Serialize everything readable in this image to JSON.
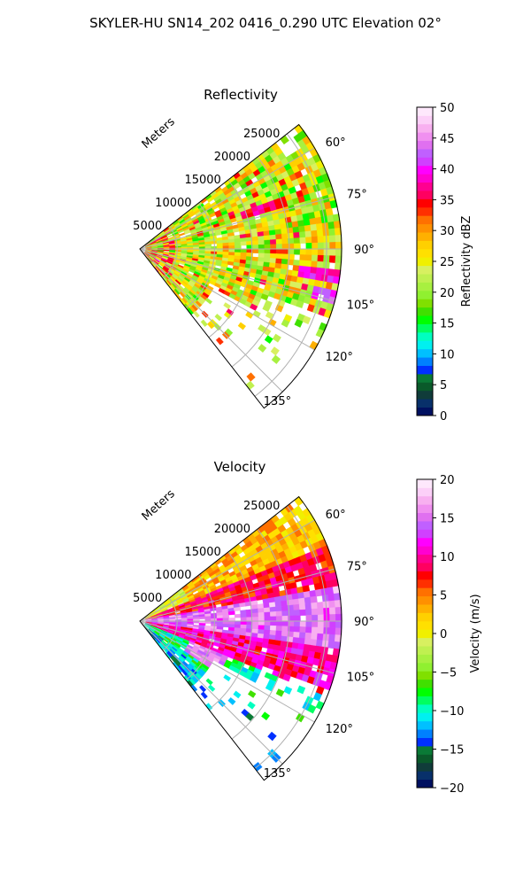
{
  "suptitle": "SKYLER-HU  SN14_202  0416_0.290 UTC Elevation 02°",
  "chart_data": [
    {
      "type": "heatmap",
      "title": "Reflectivity",
      "radial_axis_label": "Meters",
      "radial_ticks": [
        5000,
        10000,
        15000,
        20000,
        25000
      ],
      "radial_tick_labels": [
        "5000",
        "10000",
        "15000",
        "20000",
        "25000"
      ],
      "max_range": 27000,
      "azimuth_range": [
        52,
        142
      ],
      "azimuth_ticks": [
        60,
        75,
        90,
        105,
        120,
        135
      ],
      "azimuth_tick_labels": [
        "60°",
        "75°",
        "90°",
        "105°",
        "120°",
        "135°"
      ],
      "grid": true,
      "colorbar": {
        "label": "Reflectivity dBZ",
        "range": [
          0,
          50
        ],
        "ticks": [
          0,
          5,
          10,
          15,
          20,
          25,
          30,
          35,
          40,
          45,
          50
        ],
        "tick_labels": [
          "0",
          "5",
          "10",
          "15",
          "20",
          "25",
          "30",
          "35",
          "40",
          "45",
          "50"
        ],
        "colors": [
          "#001060",
          "#08306a",
          "#103c3a",
          "#0a5a2a",
          "#0a7a36",
          "#0030ff",
          "#0080ff",
          "#00c0ff",
          "#00f0f0",
          "#00ffc0",
          "#00ff60",
          "#00ff00",
          "#40e000",
          "#80e000",
          "#90f030",
          "#a8f040",
          "#c0f050",
          "#d8f060",
          "#f0f000",
          "#ffe000",
          "#ffd000",
          "#ffb000",
          "#ff9000",
          "#ff7000",
          "#ff3000",
          "#ff0000",
          "#ff0060",
          "#ff0090",
          "#ff00d0",
          "#ff00ff",
          "#d040ff",
          "#c060ff",
          "#e070f0",
          "#f090f0",
          "#f8b0f0",
          "#fcd0f8",
          "#fee8fc"
        ]
      },
      "dominant_range_dbz": [
        20,
        30
      ],
      "high_echo_azimuths": [
        72,
        98,
        104
      ],
      "annotations": []
    },
    {
      "type": "heatmap",
      "title": "Velocity",
      "radial_axis_label": "Meters",
      "radial_ticks": [
        5000,
        10000,
        15000,
        20000,
        25000
      ],
      "radial_tick_labels": [
        "5000",
        "10000",
        "15000",
        "20000",
        "25000"
      ],
      "max_range": 27000,
      "azimuth_range": [
        52,
        142
      ],
      "azimuth_ticks": [
        60,
        75,
        90,
        105,
        120,
        135
      ],
      "azimuth_tick_labels": [
        "60°",
        "75°",
        "90°",
        "105°",
        "120°",
        "135°"
      ],
      "grid": true,
      "colorbar": {
        "label": "Velocity (m/s)",
        "range": [
          -20,
          20
        ],
        "ticks": [
          -20,
          -15,
          -10,
          -5,
          0,
          5,
          10,
          15,
          20
        ],
        "tick_labels": [
          "−20",
          "−15",
          "−10",
          "−5",
          "0",
          "5",
          "10",
          "15",
          "20"
        ],
        "colors": [
          "#001060",
          "#08306a",
          "#103c3a",
          "#0a5a2a",
          "#0a7a36",
          "#0030ff",
          "#0080ff",
          "#00c0ff",
          "#00f0f0",
          "#00ffc0",
          "#00ff60",
          "#00ff00",
          "#40e000",
          "#80e000",
          "#90f030",
          "#a8f040",
          "#c0f050",
          "#d8f060",
          "#f0f000",
          "#ffe000",
          "#ffd000",
          "#ffb000",
          "#ff9000",
          "#ff7000",
          "#ff3000",
          "#ff0000",
          "#ff0060",
          "#ff0090",
          "#ff00d0",
          "#ff00ff",
          "#d040ff",
          "#c060ff",
          "#e070f0",
          "#f090f0",
          "#f8b0f0",
          "#fcd0f8",
          "#fee8fc"
        ]
      },
      "sectors_ms": [
        {
          "az": [
            52,
            68
          ],
          "value": 3
        },
        {
          "az": [
            68,
            80
          ],
          "value": 8
        },
        {
          "az": [
            80,
            98
          ],
          "value": 15
        },
        {
          "az": [
            98,
            112
          ],
          "value": 10
        },
        {
          "az": [
            112,
            128
          ],
          "value": -9
        },
        {
          "az": [
            128,
            142
          ],
          "value": -12
        }
      ]
    }
  ]
}
